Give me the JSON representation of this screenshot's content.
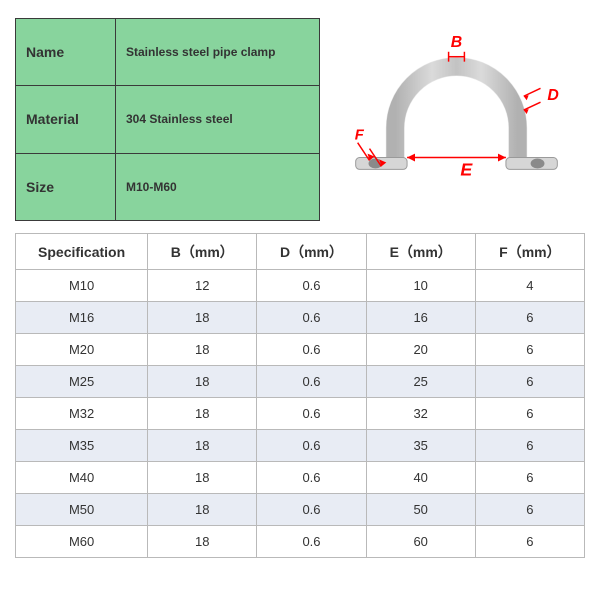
{
  "info_table": {
    "bg_color": "#88d49d",
    "rows": [
      {
        "label": "Name",
        "value": "Stainless steel pipe clamp"
      },
      {
        "label": "Material",
        "value": "304 Stainless steel"
      },
      {
        "label": "Size",
        "value": "M10-M60"
      }
    ]
  },
  "diagram": {
    "labels": {
      "B": "B",
      "D": "D",
      "E": "E",
      "F": "F"
    },
    "line_color": "#ff0000",
    "clamp_fill": "#d6d6d6",
    "clamp_stroke": "#9a9a9a"
  },
  "spec_table": {
    "columns": [
      "Specification",
      "B（mm）",
      "D（mm）",
      "E（mm）",
      "F（mm）"
    ],
    "rows": [
      {
        "cells": [
          "M10",
          "12",
          "0.6",
          "10",
          "4"
        ],
        "bg": "#ffffff"
      },
      {
        "cells": [
          "M16",
          "18",
          "0.6",
          "16",
          "6"
        ],
        "bg": "#e8ecf4"
      },
      {
        "cells": [
          "M20",
          "18",
          "0.6",
          "20",
          "6"
        ],
        "bg": "#ffffff"
      },
      {
        "cells": [
          "M25",
          "18",
          "0.6",
          "25",
          "6"
        ],
        "bg": "#e8ecf4"
      },
      {
        "cells": [
          "M32",
          "18",
          "0.6",
          "32",
          "6"
        ],
        "bg": "#ffffff"
      },
      {
        "cells": [
          "M35",
          "18",
          "0.6",
          "35",
          "6"
        ],
        "bg": "#e8ecf4"
      },
      {
        "cells": [
          "M40",
          "18",
          "0.6",
          "40",
          "6"
        ],
        "bg": "#ffffff"
      },
      {
        "cells": [
          "M50",
          "18",
          "0.6",
          "50",
          "6"
        ],
        "bg": "#e8ecf4"
      },
      {
        "cells": [
          "M60",
          "18",
          "0.6",
          "60",
          "6"
        ],
        "bg": "#ffffff"
      }
    ]
  }
}
